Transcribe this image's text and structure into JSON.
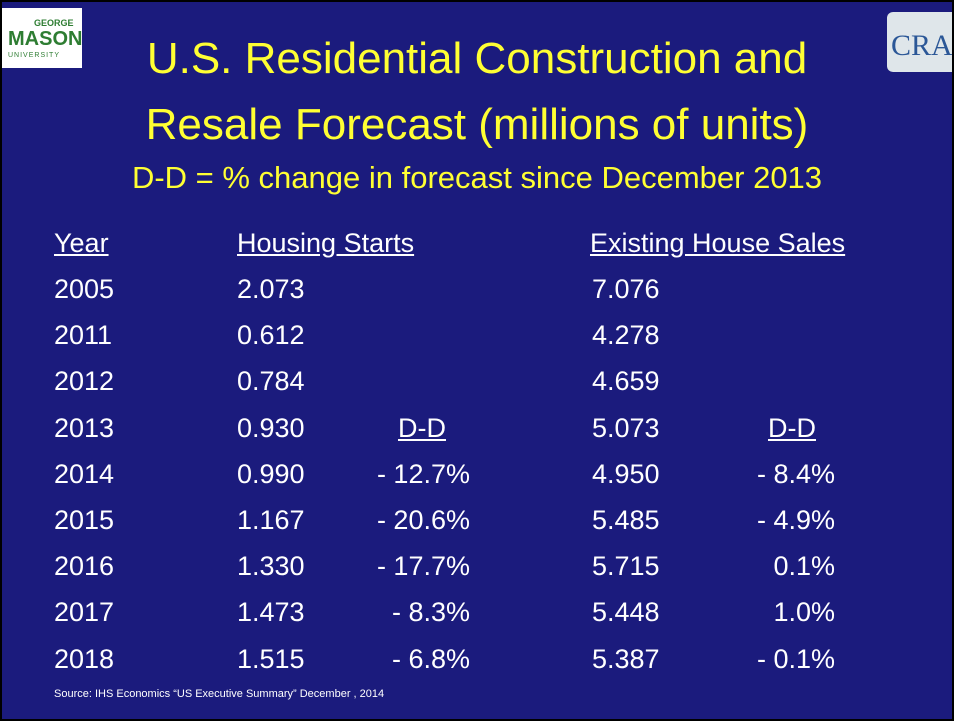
{
  "logos": {
    "left": {
      "top": "GEORGE",
      "main": "MASON",
      "bottom": "UNIVERSITY"
    },
    "right": "CRA"
  },
  "header": {
    "title_line1": "U.S. Residential Construction and",
    "title_line2": "Resale Forecast (millions of units)",
    "subtitle": "D-D = % change in forecast since December 2013"
  },
  "table": {
    "columns": [
      "Year",
      "Housing Starts",
      "Existing House Sales"
    ],
    "rows": [
      {
        "year": "2005",
        "starts": "2.073",
        "sales": "7.076"
      },
      {
        "year": "2011",
        "starts": "0.612",
        "sales": "4.278"
      },
      {
        "year": "2012",
        "starts": "0.784",
        "sales": "4.659"
      },
      {
        "year": "2013",
        "starts": "0.930",
        "starts_dd": "D-D",
        "sales": "5.073",
        "sales_dd": "D-D"
      },
      {
        "year": "2014",
        "starts": "0.990",
        "starts_dd": "- 12.7%",
        "sales": "4.950",
        "sales_dd": "- 8.4%"
      },
      {
        "year": "2015",
        "starts": "1.167",
        "starts_dd": "- 20.6%",
        "sales": "5.485",
        "sales_dd": "- 4.9%"
      },
      {
        "year": "2016",
        "starts": "1.330",
        "starts_dd": "- 17.7%",
        "sales": "5.715",
        "sales_dd": "0.1%"
      },
      {
        "year": "2017",
        "starts": "1.473",
        "starts_dd": "- 8.3%",
        "sales": "5.448",
        "sales_dd": "1.0%"
      },
      {
        "year": "2018",
        "starts": "1.515",
        "starts_dd": "- 6.8%",
        "sales": "5.387",
        "sales_dd": "- 0.1%"
      }
    ]
  },
  "footer": {
    "source": "Source: IHS Economics “US Executive Summary”  December , 2014"
  }
}
